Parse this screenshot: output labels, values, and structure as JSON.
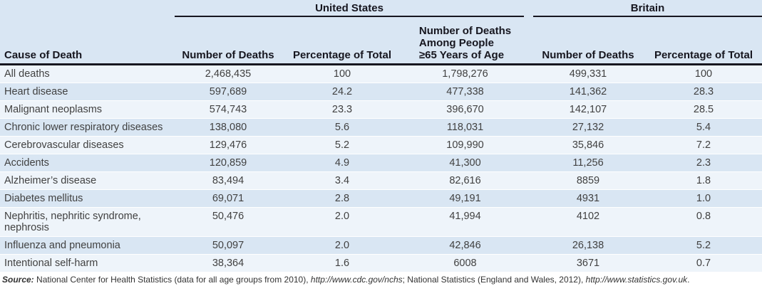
{
  "table": {
    "col_groups": {
      "united_states": "United States",
      "britain": "Britain"
    },
    "columns": {
      "cause": "Cause of Death",
      "us_deaths": "Number of Deaths",
      "us_pct": "Percentage of Total",
      "us_65_line1": "Number of Deaths",
      "us_65_line2": "Among People",
      "us_65_line3": "≥65 Years of Age",
      "br_deaths": "Number of Deaths",
      "br_pct": "Percentage of Total"
    },
    "rows": [
      [
        "All deaths",
        "2,468,435",
        "100",
        "1,798,276",
        "499,331",
        "100"
      ],
      [
        "Heart disease",
        "597,689",
        "24.2",
        "477,338",
        "141,362",
        "28.3"
      ],
      [
        "Malignant neoplasms",
        "574,743",
        "23.3",
        "396,670",
        "142,107",
        "28.5"
      ],
      [
        "Chronic lower respiratory diseases",
        "138,080",
        "5.6",
        "118,031",
        "27,132",
        "5.4"
      ],
      [
        "Cerebrovascular diseases",
        "129,476",
        "5.2",
        "109,990",
        "35,846",
        "7.2"
      ],
      [
        "Accidents",
        "120,859",
        "4.9",
        "41,300",
        "11,256",
        "2.3"
      ],
      [
        "Alzheimer’s disease",
        "83,494",
        "3.4",
        "82,616",
        "8859",
        "1.8"
      ],
      [
        "Diabetes mellitus",
        "69,071",
        "2.8",
        "49,191",
        "4931",
        "1.0"
      ],
      [
        "Nephritis, nephritic syndrome, nephrosis",
        "50,476",
        "2.0",
        "41,994",
        "4102",
        "0.8"
      ],
      [
        "Influenza and pneumonia",
        "50,097",
        "2.0",
        "42,846",
        "26,138",
        "5.2"
      ],
      [
        "Intentional self-harm",
        "38,364",
        "1.6",
        "6008",
        "3671",
        "0.7"
      ]
    ]
  },
  "source": {
    "label": "Source:",
    "seg1": " National Center for Health Statistics (data for all age groups from 2010), ",
    "url1": "http://www.cdc.gov/nchs",
    "seg2": "; National Statistics (England and Wales, 2012), ",
    "url2": "http://www.statistics.gov.uk",
    "seg3": "."
  },
  "colors": {
    "stripe_blue": "#d9e6f3",
    "stripe_light": "#eef4fa",
    "rule_dark": "#16161f",
    "body_text": "#414141"
  }
}
